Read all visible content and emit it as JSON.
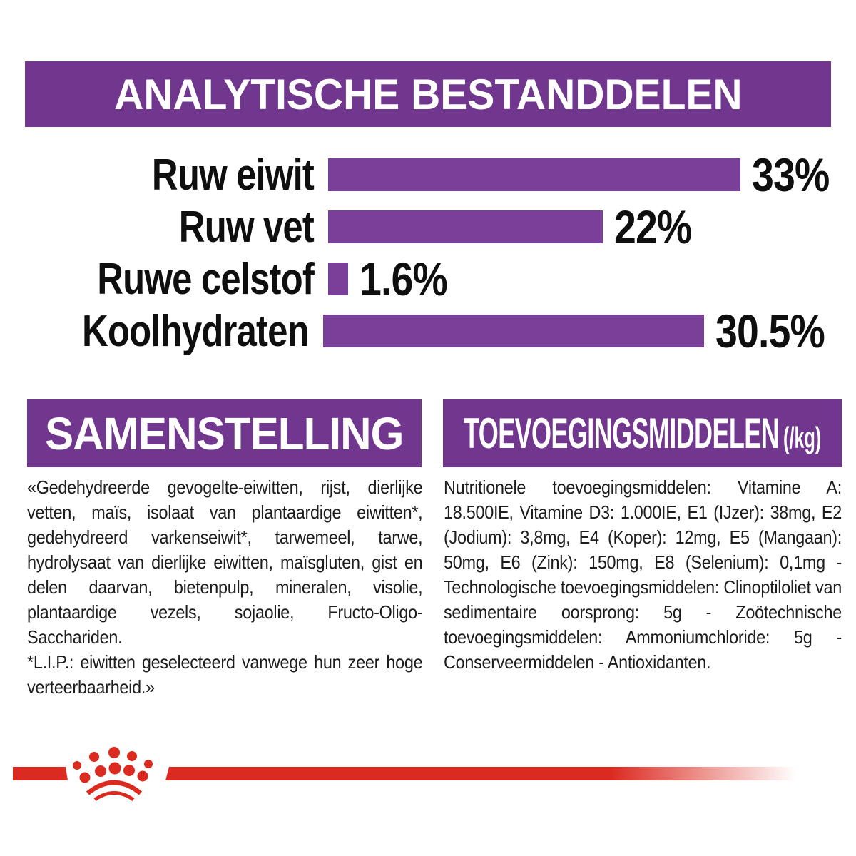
{
  "brand_colors": {
    "purple_banner": "#71378f",
    "purple_bar": "#7a3f99",
    "red": "#db2b21"
  },
  "analytical": {
    "title": "ANALYTISCHE BESTANDDELEN"
  },
  "chart_data": {
    "type": "bar",
    "orientation": "horizontal",
    "title": "ANALYTISCHE BESTANDDELEN",
    "categories": [
      "Ruw eiwit",
      "Ruw vet",
      "Ruwe celstof",
      "Koolhydraten"
    ],
    "values": [
      33,
      22,
      1.6,
      30.5
    ],
    "value_labels": [
      "33%",
      "22%",
      "1.6%",
      "30.5%"
    ],
    "unit": "%",
    "xlim": [
      0,
      34
    ],
    "grid": false,
    "legend": false,
    "bar_color": "#7a3f99"
  },
  "composition": {
    "title": "SAMENSTELLING",
    "body": "«Gedehydreerde gevogelte-eiwitten, rijst, dierlijke vetten, maïs, isolaat van plantaardige eiwitten*, gedehydreerd varkenseiwit*, tarwemeel, tarwe, hydrolysaat van dierlijke eiwitten, maïsgluten, gist en delen daarvan, bietenpulp, mineralen, visolie, plantaardige vezels, sojaolie, Fructo-Oligo-Sacchariden.",
    "footnote": "*L.I.P.: eiwitten geselecteerd vanwege hun zeer hoge verteerbaarheid.»"
  },
  "additives": {
    "title": "TOEVOEGINGSMIDDELEN",
    "unit_suffix": "(/kg)",
    "body": "Nutritionele toevoegingsmiddelen: Vitamine A: 18.500IE, Vitamine D3: 1.000IE, E1 (IJzer): 38mg, E2 (Jodium): 3,8mg, E4 (Koper): 12mg, E5 (Mangaan): 50mg, E6 (Zink): 150mg, E8 (Selenium): 0,1mg - Technologische toevoegingsmiddelen: Clinoptiloliet van sedimentaire oorsprong: 5g - Zoötechnische toevoegingsmiddelen: Ammoniumchloride: 5g - Conserveermiddelen - Antioxidanten.",
    "footer_logo": "royal-canin-crown"
  }
}
